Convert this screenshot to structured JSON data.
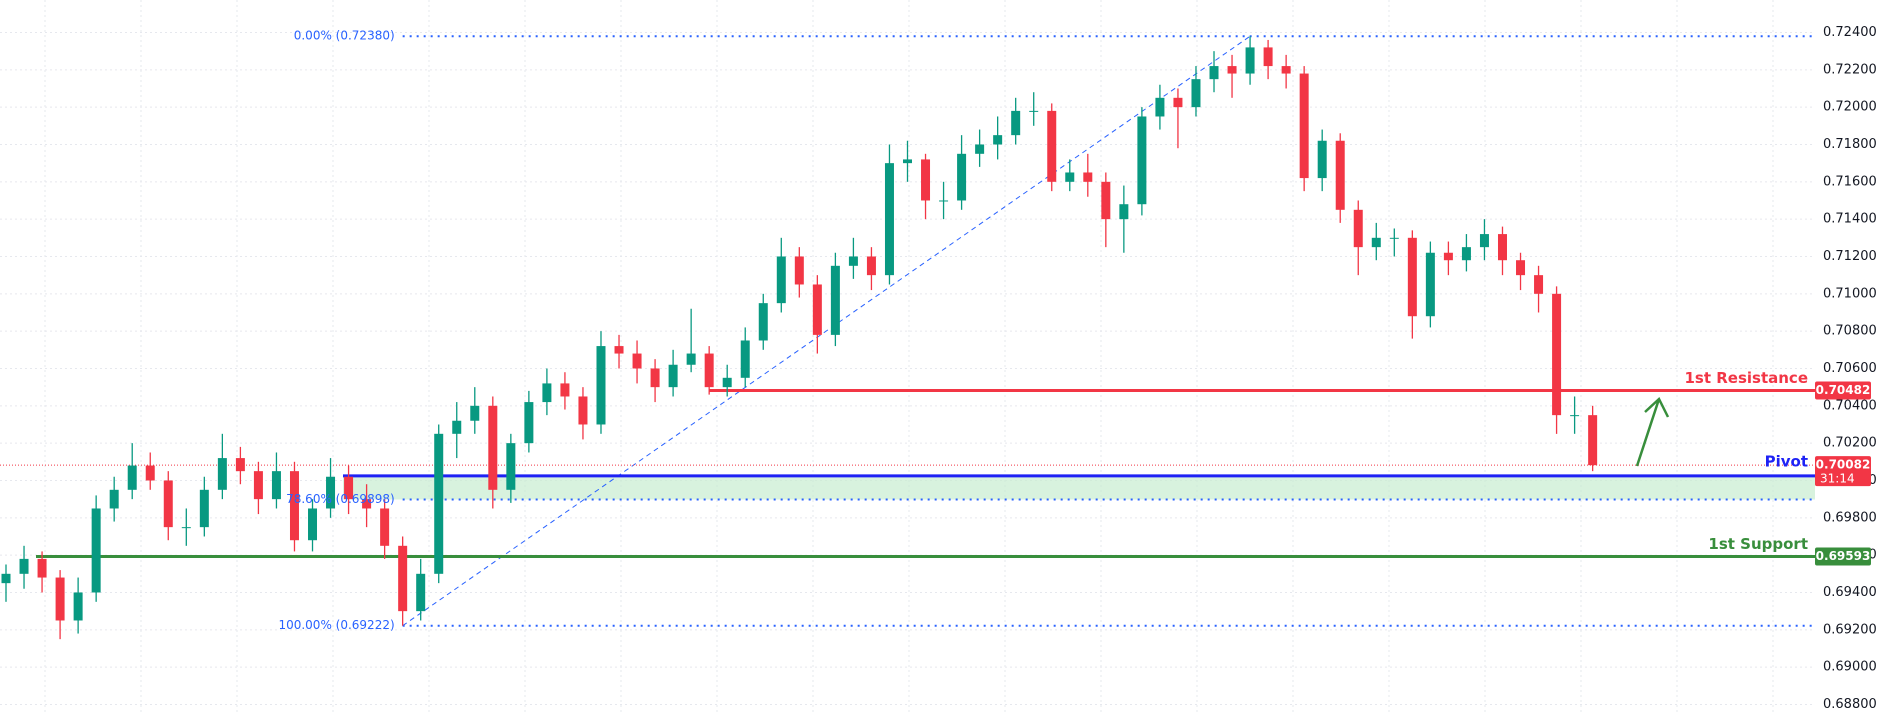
{
  "chart_data": {
    "type": "candlestick",
    "up_color": "#089981",
    "down_color": "#f23645",
    "open": [
      0.6945,
      0.695,
      0.6958,
      0.6948,
      0.6925,
      0.694,
      0.6985,
      0.6995,
      0.7008,
      0.7,
      0.6975,
      0.6975,
      0.6995,
      0.7012,
      0.7005,
      0.699,
      0.7005,
      0.6968,
      0.6985,
      0.7002,
      0.699,
      0.6985,
      0.6965,
      0.693,
      0.695,
      0.7025,
      0.7032,
      0.704,
      0.6995,
      0.702,
      0.7042,
      0.7052,
      0.7045,
      0.703,
      0.7072,
      0.7068,
      0.706,
      0.705,
      0.7062,
      0.7068,
      0.705,
      0.7055,
      0.7075,
      0.7095,
      0.712,
      0.7105,
      0.7078,
      0.7115,
      0.712,
      0.711,
      0.717,
      0.7172,
      0.715,
      0.715,
      0.7175,
      0.718,
      0.7185,
      0.7198,
      0.7198,
      0.716,
      0.7165,
      0.716,
      0.714,
      0.7148,
      0.7195,
      0.7205,
      0.72,
      0.7215,
      0.7222,
      0.7218,
      0.7232,
      0.7222,
      0.7218,
      0.7162,
      0.7182,
      0.7145,
      0.7125,
      0.713,
      0.713,
      0.7088,
      0.7122,
      0.7118,
      0.7125,
      0.7132,
      0.7118,
      0.711,
      0.71,
      0.7035,
      0.7035
    ],
    "high": [
      0.6955,
      0.6965,
      0.6962,
      0.6952,
      0.6948,
      0.6992,
      0.7002,
      0.702,
      0.7015,
      0.7005,
      0.6985,
      0.7002,
      0.7025,
      0.7018,
      0.701,
      0.7015,
      0.701,
      0.699,
      0.7012,
      0.7008,
      0.6998,
      0.699,
      0.697,
      0.6958,
      0.703,
      0.7042,
      0.705,
      0.7045,
      0.7025,
      0.7048,
      0.706,
      0.7058,
      0.705,
      0.708,
      0.7078,
      0.7075,
      0.7065,
      0.707,
      0.7092,
      0.7072,
      0.7062,
      0.7082,
      0.71,
      0.713,
      0.7125,
      0.711,
      0.7122,
      0.713,
      0.7125,
      0.718,
      0.7182,
      0.7175,
      0.716,
      0.7185,
      0.7188,
      0.7195,
      0.7205,
      0.7208,
      0.7202,
      0.7172,
      0.7175,
      0.7165,
      0.7158,
      0.72,
      0.7212,
      0.721,
      0.7222,
      0.723,
      0.7228,
      0.7238,
      0.7236,
      0.7228,
      0.7222,
      0.7188,
      0.7186,
      0.715,
      0.7138,
      0.7135,
      0.7134,
      0.7128,
      0.7128,
      0.7132,
      0.714,
      0.7136,
      0.7122,
      0.7115,
      0.7104,
      0.7045,
      0.704
    ],
    "low": [
      0.6935,
      0.6942,
      0.694,
      0.6915,
      0.6918,
      0.6935,
      0.6978,
      0.699,
      0.6995,
      0.6968,
      0.6965,
      0.697,
      0.699,
      0.6998,
      0.6982,
      0.6985,
      0.6962,
      0.6962,
      0.698,
      0.6982,
      0.6975,
      0.6958,
      0.69222,
      0.6925,
      0.6945,
      0.7012,
      0.7025,
      0.6985,
      0.6988,
      0.7015,
      0.7035,
      0.7038,
      0.7022,
      0.7025,
      0.706,
      0.7052,
      0.7042,
      0.7045,
      0.7058,
      0.7046,
      0.7045,
      0.705,
      0.707,
      0.709,
      0.7098,
      0.7068,
      0.7072,
      0.7108,
      0.7102,
      0.7105,
      0.716,
      0.714,
      0.714,
      0.7145,
      0.7168,
      0.7172,
      0.718,
      0.719,
      0.7155,
      0.7155,
      0.7152,
      0.7125,
      0.7122,
      0.7142,
      0.7188,
      0.7178,
      0.7195,
      0.7208,
      0.7205,
      0.7212,
      0.7215,
      0.721,
      0.7155,
      0.7155,
      0.7138,
      0.711,
      0.7118,
      0.712,
      0.7076,
      0.7082,
      0.711,
      0.7112,
      0.7118,
      0.711,
      0.7102,
      0.709,
      0.7025,
      0.7025,
      0.7005
    ],
    "close": [
      0.695,
      0.6958,
      0.6948,
      0.6925,
      0.694,
      0.6985,
      0.6995,
      0.7008,
      0.7,
      0.6975,
      0.6975,
      0.6995,
      0.7012,
      0.7005,
      0.699,
      0.7005,
      0.6968,
      0.6985,
      0.7002,
      0.699,
      0.6985,
      0.6965,
      0.693,
      0.695,
      0.7025,
      0.7032,
      0.704,
      0.6995,
      0.702,
      0.7042,
      0.7052,
      0.7045,
      0.703,
      0.7072,
      0.7068,
      0.706,
      0.705,
      0.7062,
      0.7068,
      0.705,
      0.7055,
      0.7075,
      0.7095,
      0.712,
      0.7105,
      0.7078,
      0.7115,
      0.712,
      0.711,
      0.717,
      0.7172,
      0.715,
      0.715,
      0.7175,
      0.718,
      0.7185,
      0.7198,
      0.7198,
      0.716,
      0.7165,
      0.716,
      0.714,
      0.7148,
      0.7195,
      0.7205,
      0.72,
      0.7215,
      0.7222,
      0.7218,
      0.7232,
      0.7222,
      0.7218,
      0.7162,
      0.7182,
      0.7145,
      0.7125,
      0.713,
      0.713,
      0.7088,
      0.7122,
      0.7118,
      0.7125,
      0.7132,
      0.7118,
      0.711,
      0.71,
      0.7035,
      0.7035,
      0.70082
    ],
    "ylim": [
      0.68749,
      0.72574
    ],
    "yticks": [
      {
        "value": 0.688,
        "label": "0.68800"
      },
      {
        "value": 0.69,
        "label": "0.69000"
      },
      {
        "value": 0.692,
        "label": "0.69200"
      },
      {
        "value": 0.694,
        "label": "0.69400"
      },
      {
        "value": 0.696,
        "label": "0.69600"
      },
      {
        "value": 0.698,
        "label": "0.69800"
      },
      {
        "value": 0.7,
        "label": "0.70000"
      },
      {
        "value": 0.702,
        "label": "0.70200"
      },
      {
        "value": 0.704,
        "label": "0.70400"
      },
      {
        "value": 0.706,
        "label": "0.70600"
      },
      {
        "value": 0.708,
        "label": "0.70800"
      },
      {
        "value": 0.71,
        "label": "0.71000"
      },
      {
        "value": 0.712,
        "label": "0.71200"
      },
      {
        "value": 0.714,
        "label": "0.71400"
      },
      {
        "value": 0.716,
        "label": "0.71600"
      },
      {
        "value": 0.718,
        "label": "0.71800"
      },
      {
        "value": 0.72,
        "label": "0.72000"
      },
      {
        "value": 0.722,
        "label": "0.72200"
      },
      {
        "value": 0.724,
        "label": "0.72400"
      }
    ],
    "grid": true,
    "levels": [
      {
        "name": "1st Resistance",
        "value": 0.70482,
        "color": "#f23645"
      },
      {
        "name": "Pivot",
        "value": 0.70025,
        "color": "#1e22f5"
      },
      {
        "name": "1st Support",
        "value": 0.69593,
        "color": "#388e3c"
      }
    ],
    "current_price": {
      "value": 0.70082,
      "countdown": "31:14",
      "color": "#f23645"
    },
    "fibonacci": [
      {
        "value": 0.7238,
        "label": "0.00% (0.72380)"
      },
      {
        "value": 0.69898,
        "label": "78.60% (0.69898)"
      },
      {
        "value": 0.69222,
        "label": "100.00% (0.69222)"
      }
    ],
    "fib_color": "#2962ff",
    "zone_color": "#c8ecd0"
  }
}
